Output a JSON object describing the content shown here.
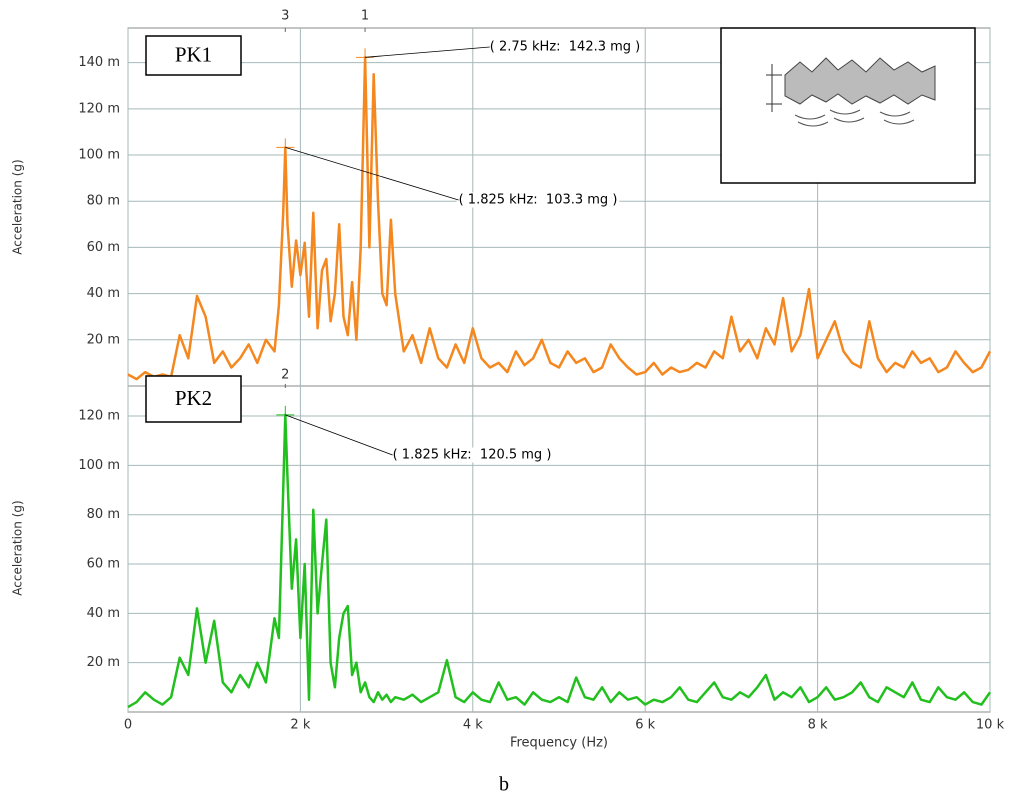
{
  "chart_data": [
    {
      "type": "line",
      "label": "PK1",
      "y_label": "Acceleration (g)",
      "xlim": [
        0,
        10000
      ],
      "ylim": [
        0,
        0.155
      ],
      "yticks": [
        {
          "value": 0.02,
          "label": "20 m"
        },
        {
          "value": 0.04,
          "label": "40 m"
        },
        {
          "value": 0.06,
          "label": "60 m"
        },
        {
          "value": 0.08,
          "label": "80 m"
        },
        {
          "value": 0.1,
          "label": "100 m"
        },
        {
          "value": 0.12,
          "label": "120 m"
        },
        {
          "value": 0.14,
          "label": "140 m"
        }
      ],
      "grid": true,
      "x": [
        0,
        100,
        200,
        300,
        400,
        500,
        600,
        700,
        800,
        900,
        1000,
        1100,
        1200,
        1300,
        1400,
        1500,
        1600,
        1700,
        1750,
        1800,
        1825,
        1850,
        1900,
        1950,
        2000,
        2050,
        2100,
        2150,
        2200,
        2250,
        2300,
        2350,
        2400,
        2450,
        2500,
        2550,
        2600,
        2650,
        2700,
        2750,
        2800,
        2850,
        2900,
        2950,
        3000,
        3050,
        3100,
        3200,
        3300,
        3400,
        3500,
        3600,
        3700,
        3800,
        3900,
        4000,
        4100,
        4200,
        4300,
        4400,
        4500,
        4600,
        4700,
        4800,
        4900,
        5000,
        5100,
        5200,
        5300,
        5400,
        5500,
        5600,
        5700,
        5800,
        5900,
        6000,
        6100,
        6200,
        6300,
        6400,
        6500,
        6600,
        6700,
        6800,
        6900,
        7000,
        7100,
        7200,
        7300,
        7400,
        7500,
        7600,
        7700,
        7800,
        7900,
        8000,
        8100,
        8200,
        8300,
        8400,
        8500,
        8600,
        8700,
        8800,
        8900,
        9000,
        9100,
        9200,
        9300,
        9400,
        9500,
        9600,
        9700,
        9800,
        9900,
        10000
      ],
      "series": [
        {
          "color": "#f5871f",
          "values": [
            0.005,
            0.003,
            0.006,
            0.004,
            0.005,
            0.004,
            0.022,
            0.012,
            0.039,
            0.03,
            0.01,
            0.015,
            0.008,
            0.012,
            0.018,
            0.01,
            0.02,
            0.015,
            0.035,
            0.075,
            0.1033,
            0.07,
            0.043,
            0.063,
            0.048,
            0.062,
            0.03,
            0.075,
            0.025,
            0.05,
            0.055,
            0.028,
            0.04,
            0.07,
            0.03,
            0.022,
            0.045,
            0.02,
            0.06,
            0.1423,
            0.06,
            0.135,
            0.08,
            0.04,
            0.035,
            0.072,
            0.04,
            0.015,
            0.022,
            0.01,
            0.025,
            0.012,
            0.008,
            0.018,
            0.01,
            0.025,
            0.012,
            0.008,
            0.01,
            0.006,
            0.015,
            0.009,
            0.012,
            0.02,
            0.01,
            0.008,
            0.015,
            0.01,
            0.012,
            0.006,
            0.008,
            0.018,
            0.012,
            0.008,
            0.005,
            0.006,
            0.01,
            0.005,
            0.008,
            0.006,
            0.007,
            0.01,
            0.008,
            0.015,
            0.012,
            0.03,
            0.015,
            0.02,
            0.012,
            0.025,
            0.018,
            0.038,
            0.015,
            0.022,
            0.042,
            0.012,
            0.02,
            0.028,
            0.015,
            0.01,
            0.008,
            0.028,
            0.012,
            0.006,
            0.01,
            0.008,
            0.015,
            0.01,
            0.012,
            0.006,
            0.008,
            0.015,
            0.01,
            0.006,
            0.008,
            0.015
          ]
        }
      ],
      "annotations": [
        {
          "text": "( 2.75 kHz:  142.3 mg )",
          "x": 2750,
          "y": 0.1423
        },
        {
          "text": "( 1.825 kHz:  103.3 mg )",
          "x": 1825,
          "y": 0.1033
        }
      ],
      "cursors": [
        {
          "label": "3",
          "x": 1825
        },
        {
          "label": "1",
          "x": 2750
        }
      ]
    },
    {
      "type": "line",
      "label": "PK2",
      "y_label": "Acceleration (g)",
      "x_label": "Frequency (Hz)",
      "xlim": [
        0,
        10000
      ],
      "ylim": [
        0,
        0.133
      ],
      "xticks": [
        0,
        {
          "value": 2000,
          "label": "2 k"
        },
        {
          "value": 4000,
          "label": "4 k"
        },
        {
          "value": 6000,
          "label": "6 k"
        },
        {
          "value": 8000,
          "label": "8 k"
        },
        {
          "value": 10000,
          "label": "10 k"
        }
      ],
      "yticks": [
        {
          "value": 0.02,
          "label": "20 m"
        },
        {
          "value": 0.04,
          "label": "40 m"
        },
        {
          "value": 0.06,
          "label": "60 m"
        },
        {
          "value": 0.08,
          "label": "80 m"
        },
        {
          "value": 0.1,
          "label": "100 m"
        },
        {
          "value": 0.12,
          "label": "120 m"
        }
      ],
      "grid": true,
      "x": [
        0,
        100,
        200,
        300,
        400,
        500,
        600,
        700,
        800,
        900,
        1000,
        1100,
        1200,
        1300,
        1400,
        1500,
        1600,
        1700,
        1750,
        1800,
        1825,
        1850,
        1900,
        1950,
        2000,
        2050,
        2100,
        2150,
        2200,
        2250,
        2300,
        2350,
        2400,
        2450,
        2500,
        2550,
        2600,
        2650,
        2700,
        2750,
        2800,
        2850,
        2900,
        2950,
        3000,
        3050,
        3100,
        3200,
        3300,
        3400,
        3500,
        3600,
        3700,
        3800,
        3900,
        4000,
        4100,
        4200,
        4300,
        4400,
        4500,
        4600,
        4700,
        4800,
        4900,
        5000,
        5100,
        5200,
        5300,
        5400,
        5500,
        5600,
        5700,
        5800,
        5900,
        6000,
        6100,
        6200,
        6300,
        6400,
        6500,
        6600,
        6700,
        6800,
        6900,
        7000,
        7100,
        7200,
        7300,
        7400,
        7500,
        7600,
        7700,
        7800,
        7900,
        8000,
        8100,
        8200,
        8300,
        8400,
        8500,
        8600,
        8700,
        8800,
        8900,
        9000,
        9100,
        9200,
        9300,
        9400,
        9500,
        9600,
        9700,
        9800,
        9900,
        10000
      ],
      "series": [
        {
          "color": "#22c01e",
          "values": [
            0.002,
            0.004,
            0.008,
            0.005,
            0.003,
            0.006,
            0.022,
            0.015,
            0.042,
            0.02,
            0.037,
            0.012,
            0.008,
            0.015,
            0.01,
            0.02,
            0.012,
            0.038,
            0.03,
            0.09,
            0.1205,
            0.095,
            0.05,
            0.07,
            0.03,
            0.06,
            0.005,
            0.082,
            0.04,
            0.06,
            0.078,
            0.02,
            0.01,
            0.03,
            0.04,
            0.043,
            0.015,
            0.02,
            0.008,
            0.012,
            0.006,
            0.004,
            0.008,
            0.005,
            0.007,
            0.004,
            0.006,
            0.005,
            0.007,
            0.004,
            0.006,
            0.008,
            0.021,
            0.006,
            0.004,
            0.008,
            0.005,
            0.004,
            0.012,
            0.005,
            0.006,
            0.003,
            0.008,
            0.005,
            0.004,
            0.006,
            0.004,
            0.014,
            0.006,
            0.005,
            0.01,
            0.004,
            0.008,
            0.005,
            0.006,
            0.003,
            0.005,
            0.004,
            0.006,
            0.01,
            0.005,
            0.004,
            0.008,
            0.012,
            0.006,
            0.005,
            0.008,
            0.006,
            0.01,
            0.015,
            0.005,
            0.008,
            0.006,
            0.01,
            0.004,
            0.006,
            0.01,
            0.005,
            0.006,
            0.008,
            0.012,
            0.006,
            0.004,
            0.01,
            0.008,
            0.006,
            0.012,
            0.005,
            0.004,
            0.01,
            0.006,
            0.005,
            0.008,
            0.004,
            0.003,
            0.008
          ]
        }
      ],
      "annotations": [
        {
          "text": "( 1.825 kHz:  120.5 mg )",
          "x": 1825,
          "y": 0.1205
        }
      ],
      "cursors": [
        {
          "label": "2",
          "x": 1825
        }
      ]
    }
  ],
  "caption": "b"
}
